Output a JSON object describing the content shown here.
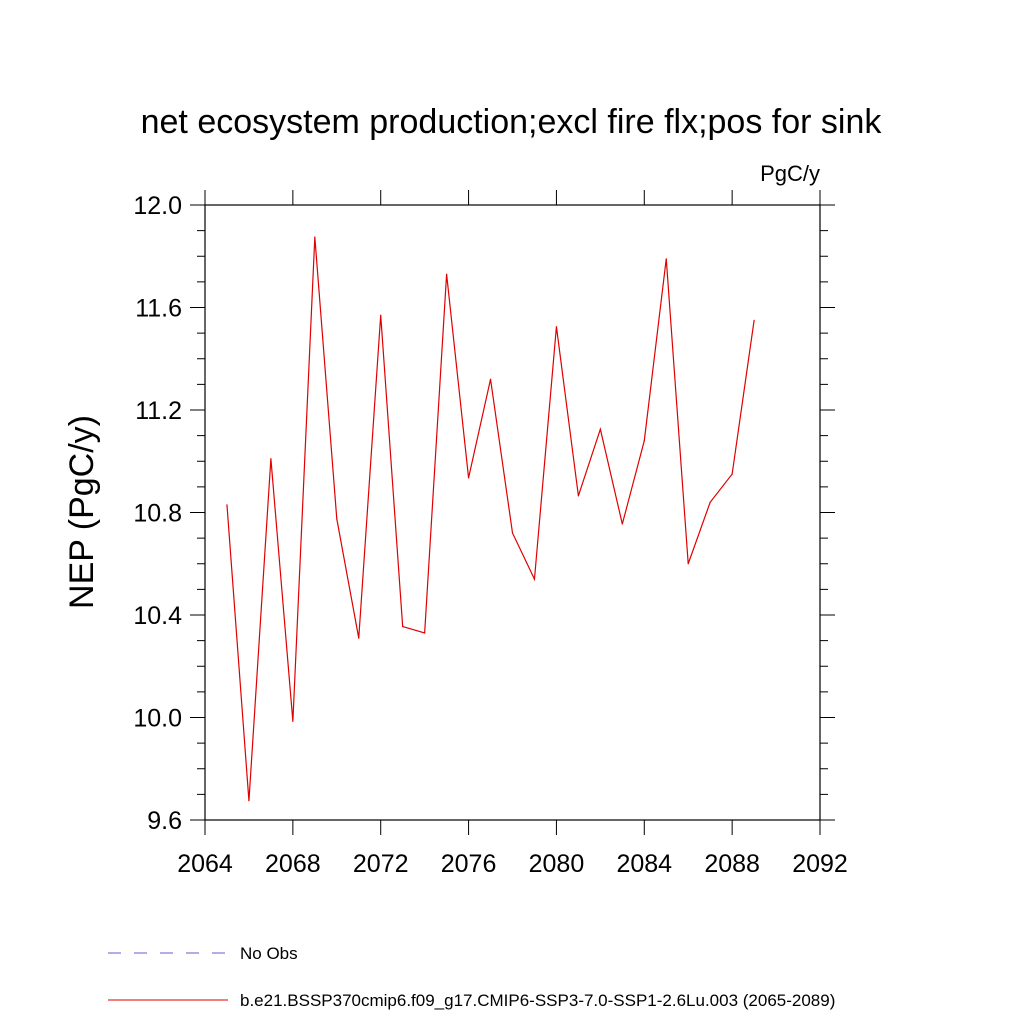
{
  "chart_data": {
    "type": "line",
    "title": "net ecosystem production;excl fire flx;pos for sink",
    "units": "PgC/y",
    "ylabel": "NEP  (PgC/y)",
    "xlabel": "",
    "xlim": [
      2064,
      2092
    ],
    "ylim": [
      9.6,
      12.0
    ],
    "xticks": [
      2064,
      2068,
      2072,
      2076,
      2080,
      2084,
      2088,
      2092
    ],
    "yticks": [
      9.6,
      10.0,
      10.4,
      10.8,
      11.2,
      11.6,
      12.0
    ],
    "grid": false,
    "legend_position": "bottom",
    "series": [
      {
        "name": "b.e21.BSSP370cmip6.f09_g17.CMIP6-SSP3-7.0-SSP1-2.6Lu.003 (2065-2089)",
        "color": "#e00000",
        "line_style": "solid",
        "x": [
          2065,
          2066,
          2067,
          2068,
          2069,
          2070,
          2071,
          2072,
          2073,
          2074,
          2075,
          2076,
          2077,
          2078,
          2079,
          2080,
          2081,
          2082,
          2083,
          2084,
          2085,
          2086,
          2087,
          2088,
          2089
        ],
        "y": [
          10.83,
          9.675,
          11.01,
          9.985,
          11.875,
          10.775,
          10.31,
          11.57,
          10.355,
          10.33,
          11.73,
          10.935,
          11.32,
          10.72,
          10.54,
          11.525,
          10.865,
          11.125,
          10.755,
          11.08,
          11.79,
          10.6,
          10.84,
          10.95,
          11.55
        ]
      }
    ],
    "legend": [
      {
        "label": "No Obs",
        "color": "#6a5acd",
        "line_style": "dashed"
      },
      {
        "label": "b.e21.BSSP370cmip6.f09_g17.CMIP6-SSP3-7.0-SSP1-2.6Lu.003 (2065-2089)",
        "color": "#e00000",
        "line_style": "solid"
      }
    ]
  }
}
